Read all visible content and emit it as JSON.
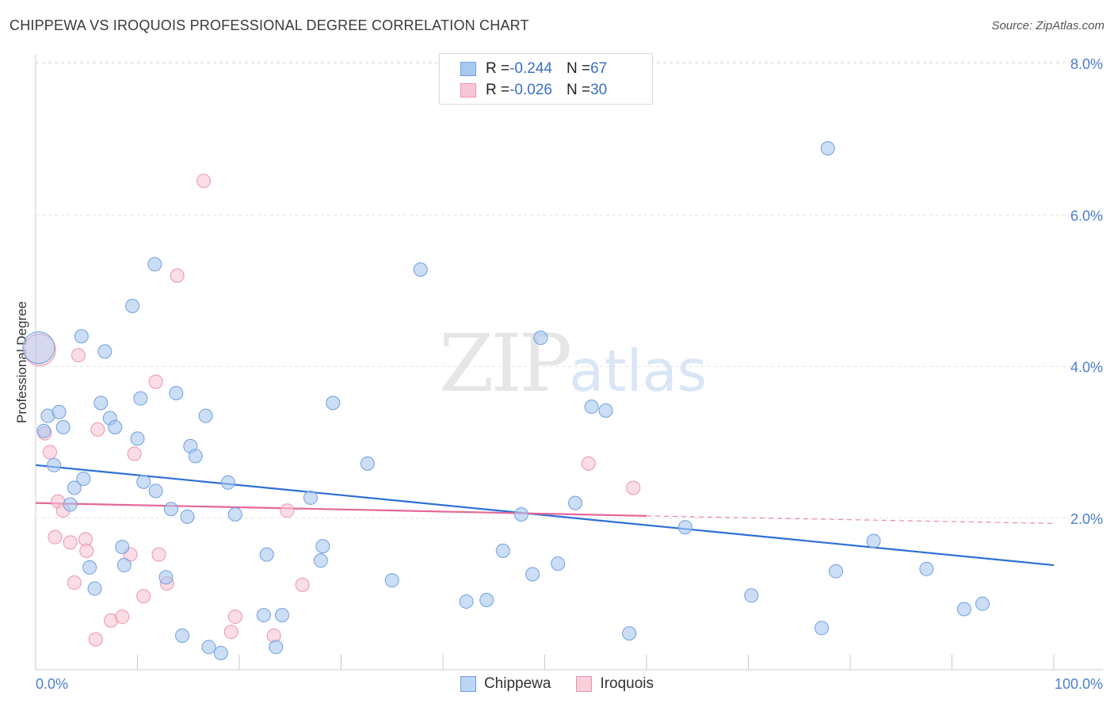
{
  "title": "CHIPPEWA VS IROQUOIS PROFESSIONAL DEGREE CORRELATION CHART",
  "source": "Source: ZipAtlas.com",
  "watermark": {
    "zip": "ZIP",
    "atlas": "atlas"
  },
  "legend": {
    "rows": [
      {
        "r_label": "R = ",
        "r_value": "-0.244",
        "n_label": "N = ",
        "n_value": "67",
        "color": "#a9c8f0",
        "border": "#6f9fdf"
      },
      {
        "r_label": "R = ",
        "r_value": "-0.026",
        "n_label": "N = ",
        "n_value": "30",
        "color": "#f7c6d4",
        "border": "#ee93ad"
      }
    ]
  },
  "bottom_legend": [
    {
      "label": "Chippewa",
      "color": "#bcd5f5",
      "border": "#6f9fdf"
    },
    {
      "label": "Iroquois",
      "color": "#f8cfdb",
      "border": "#ee93ad"
    }
  ],
  "chart_data": {
    "type": "scatter",
    "title": "CHIPPEWA VS IROQUOIS PROFESSIONAL DEGREE CORRELATION CHART",
    "xlabel": "",
    "ylabel": "Professional Degree",
    "xlim": [
      0,
      100
    ],
    "ylim": [
      0,
      8
    ],
    "x_tick_labels": [
      "0.0%",
      "100.0%"
    ],
    "y_ticks": [
      2,
      4,
      6,
      8
    ],
    "y_tick_labels": [
      "2.0%",
      "4.0%",
      "6.0%",
      "8.0%"
    ],
    "grid": true,
    "series": [
      {
        "name": "Chippewa",
        "color": "#a9c8f0",
        "stroke": "#6f9fdf",
        "trend": {
          "x0": 0,
          "y0": 2.7,
          "x1": 100,
          "y1": 1.38,
          "color": "#2e6fd6"
        },
        "points": [
          [
            0.3,
            4.25
          ],
          [
            0.8,
            3.15
          ],
          [
            1.2,
            3.35
          ],
          [
            1.8,
            2.7
          ],
          [
            2.3,
            3.4
          ],
          [
            2.7,
            3.2
          ],
          [
            3.4,
            2.18
          ],
          [
            3.8,
            2.4
          ],
          [
            4.5,
            4.4
          ],
          [
            4.7,
            2.52
          ],
          [
            5.3,
            1.35
          ],
          [
            5.8,
            1.07
          ],
          [
            6.4,
            3.52
          ],
          [
            6.8,
            4.2
          ],
          [
            7.3,
            3.32
          ],
          [
            7.8,
            3.2
          ],
          [
            8.5,
            1.62
          ],
          [
            8.7,
            1.38
          ],
          [
            9.5,
            4.8
          ],
          [
            10.0,
            3.05
          ],
          [
            10.3,
            3.58
          ],
          [
            10.6,
            2.48
          ],
          [
            11.7,
            5.35
          ],
          [
            11.8,
            2.36
          ],
          [
            12.8,
            1.22
          ],
          [
            13.3,
            2.12
          ],
          [
            13.8,
            3.65
          ],
          [
            14.4,
            0.45
          ],
          [
            14.9,
            2.02
          ],
          [
            15.2,
            2.95
          ],
          [
            15.7,
            2.82
          ],
          [
            16.7,
            3.35
          ],
          [
            17.0,
            0.3
          ],
          [
            18.2,
            0.22
          ],
          [
            18.9,
            2.47
          ],
          [
            19.6,
            2.05
          ],
          [
            22.4,
            0.72
          ],
          [
            22.7,
            1.52
          ],
          [
            23.6,
            0.3
          ],
          [
            24.2,
            0.72
          ],
          [
            27.0,
            2.27
          ],
          [
            28.0,
            1.44
          ],
          [
            28.2,
            1.63
          ],
          [
            29.2,
            3.52
          ],
          [
            32.6,
            2.72
          ],
          [
            35.0,
            1.18
          ],
          [
            37.8,
            5.28
          ],
          [
            42.3,
            0.9
          ],
          [
            44.3,
            0.92
          ],
          [
            45.9,
            1.57
          ],
          [
            47.7,
            2.05
          ],
          [
            48.8,
            1.26
          ],
          [
            49.6,
            4.38
          ],
          [
            51.3,
            1.4
          ],
          [
            53.0,
            2.2
          ],
          [
            54.6,
            3.47
          ],
          [
            56.0,
            3.42
          ],
          [
            58.3,
            0.48
          ],
          [
            63.8,
            1.88
          ],
          [
            70.3,
            0.98
          ],
          [
            78.6,
            1.3
          ],
          [
            77.8,
            6.88
          ],
          [
            77.2,
            0.55
          ],
          [
            82.3,
            1.7
          ],
          [
            87.5,
            1.33
          ],
          [
            91.2,
            0.8
          ],
          [
            93.0,
            0.87
          ]
        ]
      },
      {
        "name": "Iroquois",
        "color": "#f7c6d4",
        "stroke": "#ee93ad",
        "trend": {
          "x0": 0,
          "y0": 2.2,
          "x1": 60,
          "y1": 2.03,
          "dash_to_x": 100,
          "dash_to_y": 1.93,
          "color": "#e5679a"
        },
        "points": [
          [
            0.4,
            4.22
          ],
          [
            0.9,
            3.12
          ],
          [
            1.4,
            2.87
          ],
          [
            1.9,
            1.75
          ],
          [
            2.2,
            2.22
          ],
          [
            2.7,
            2.1
          ],
          [
            3.4,
            1.68
          ],
          [
            3.8,
            1.15
          ],
          [
            4.2,
            4.15
          ],
          [
            4.9,
            1.72
          ],
          [
            5.0,
            1.57
          ],
          [
            5.9,
            0.4
          ],
          [
            6.1,
            3.17
          ],
          [
            7.4,
            0.65
          ],
          [
            8.5,
            0.7
          ],
          [
            9.3,
            1.52
          ],
          [
            9.7,
            2.85
          ],
          [
            10.6,
            0.97
          ],
          [
            11.8,
            3.8
          ],
          [
            12.1,
            1.52
          ],
          [
            12.9,
            1.14
          ],
          [
            13.9,
            5.2
          ],
          [
            16.5,
            6.45
          ],
          [
            19.2,
            0.5
          ],
          [
            19.6,
            0.7
          ],
          [
            23.4,
            0.45
          ],
          [
            24.7,
            2.1
          ],
          [
            26.2,
            1.12
          ],
          [
            54.3,
            2.72
          ],
          [
            58.7,
            2.4
          ]
        ]
      }
    ]
  }
}
